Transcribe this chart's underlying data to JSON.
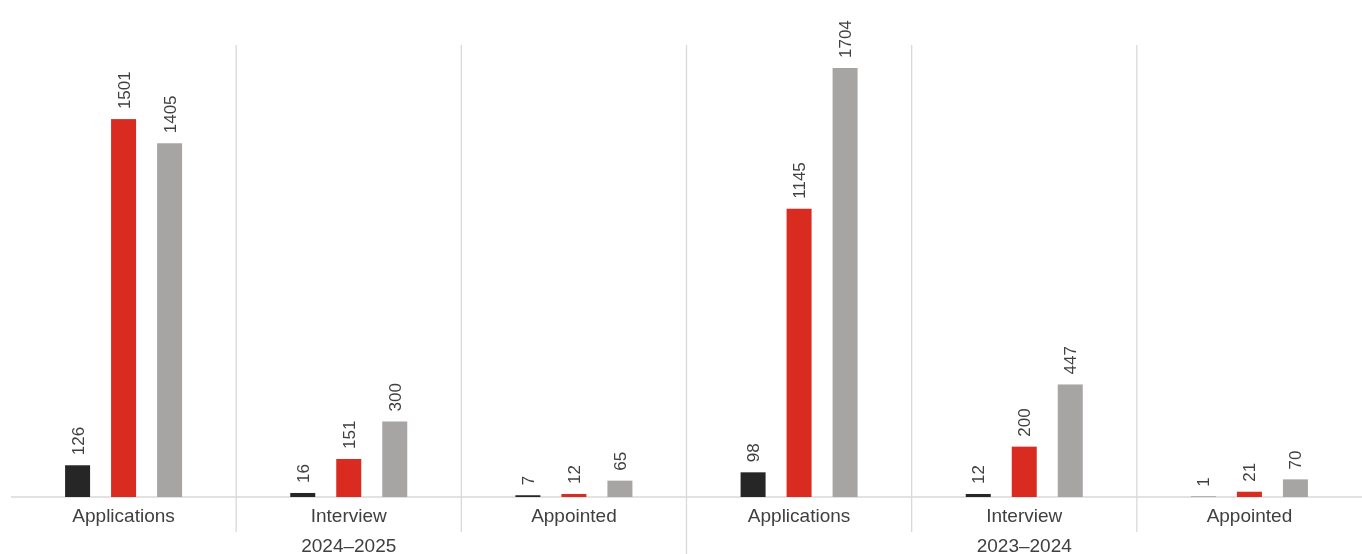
{
  "chart_data": {
    "type": "bar",
    "categories": [
      "Applications",
      "Interview",
      "Appointed",
      "Applications",
      "Interview",
      "Appointed"
    ],
    "series": [
      {
        "color": "#262626",
        "values": [
          126,
          16,
          7,
          98,
          12,
          1
        ]
      },
      {
        "color": "#d92b20",
        "values": [
          1501,
          151,
          12,
          1145,
          200,
          21
        ]
      },
      {
        "color": "#a6a5a4",
        "values": [
          1405,
          300,
          65,
          1704,
          447,
          70
        ]
      }
    ],
    "annotations": [
      "2024–2025",
      "2023–2024"
    ],
    "data_labels": true,
    "grid": "x"
  }
}
